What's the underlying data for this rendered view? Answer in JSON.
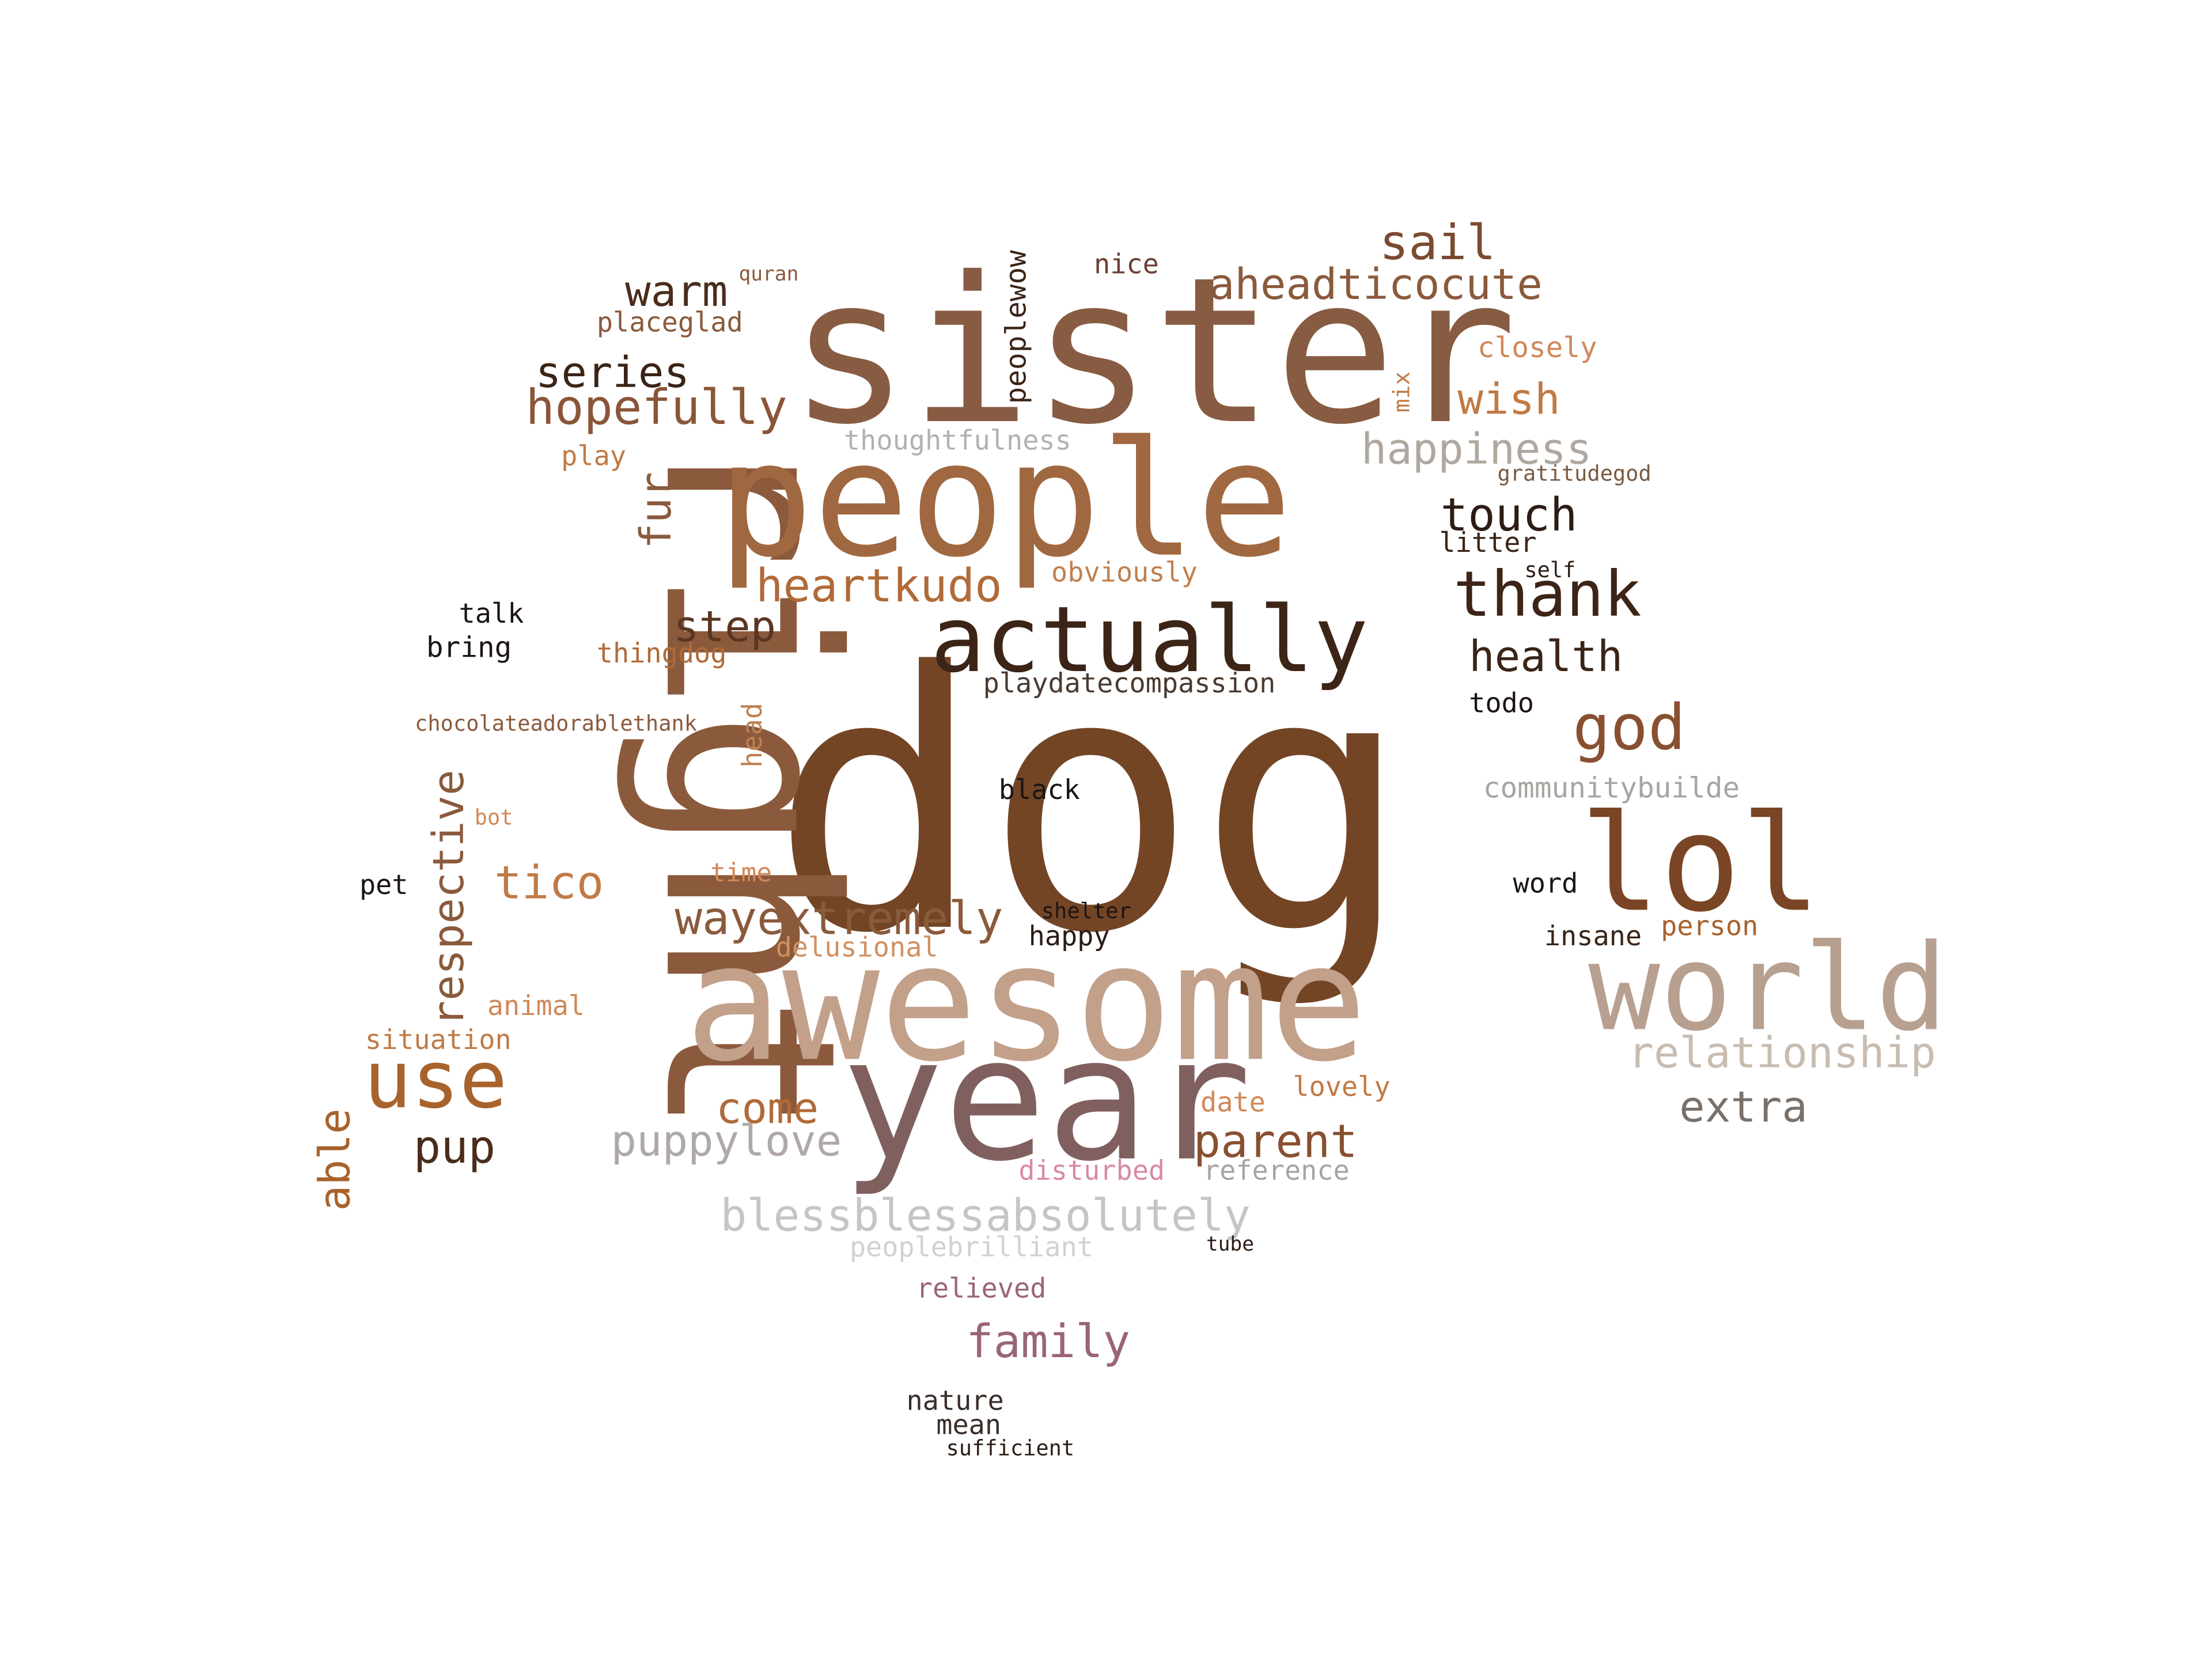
{
  "words": [
    {
      "text": "dog",
      "color": "#734525"
    },
    {
      "text": "sister",
      "color": "#885c42"
    },
    {
      "text": "right",
      "color": "#8b5a3c"
    },
    {
      "text": "people",
      "color": "#a06840"
    },
    {
      "text": "awesome",
      "color": "#c2a08a"
    },
    {
      "text": "year",
      "color": "#80605f"
    },
    {
      "text": "actually",
      "color": "#3c2416"
    },
    {
      "text": "lol",
      "color": "#7a4524"
    },
    {
      "text": "world",
      "color": "#b8a090"
    },
    {
      "text": "use",
      "color": "#a8622c"
    },
    {
      "text": "thank",
      "color": "#3c2416"
    },
    {
      "text": "god",
      "color": "#885030"
    },
    {
      "text": "hopefully",
      "color": "#8a5538"
    },
    {
      "text": "heartkudo",
      "color": "#b06a38"
    },
    {
      "text": "aheadticocute",
      "color": "#8a5a3c"
    },
    {
      "text": "sail",
      "color": "#7a4a30"
    },
    {
      "text": "warm",
      "color": "#4a2c1c"
    },
    {
      "text": "series",
      "color": "#3a2416"
    },
    {
      "text": "wish",
      "color": "#c07a45"
    },
    {
      "text": "happiness",
      "color": "#b0a8a0"
    },
    {
      "text": "touch",
      "color": "#2c1c14"
    },
    {
      "text": "health",
      "color": "#3a2416"
    },
    {
      "text": "step",
      "color": "#5a3622"
    },
    {
      "text": "fur",
      "color": "#8a5a3c"
    },
    {
      "text": "respective",
      "color": "#8a5a3c"
    },
    {
      "text": "tico",
      "color": "#c07a45"
    },
    {
      "text": "wayextremely",
      "color": "#8a5a3c"
    },
    {
      "text": "come",
      "color": "#b06a38"
    },
    {
      "text": "parent",
      "color": "#885030"
    },
    {
      "text": "puppylove",
      "color": "#b0a8a8"
    },
    {
      "text": "pup",
      "color": "#4a2c1c"
    },
    {
      "text": "able",
      "color": "#a8622c"
    },
    {
      "text": "blessblessabsolutely",
      "color": "#c8c4c4"
    },
    {
      "text": "family",
      "color": "#9a6478"
    },
    {
      "text": "extra",
      "color": "#7a706a"
    },
    {
      "text": "relationship",
      "color": "#c8bcb0"
    },
    {
      "text": "thoughtfulness",
      "color": "#b4b0ae"
    },
    {
      "text": "playdatecompassion",
      "color": "#4a3a30"
    },
    {
      "text": "communitybuilde",
      "color": "#a8a4a0"
    },
    {
      "text": "peoplewow",
      "color": "#3a2416"
    },
    {
      "text": "placeglad",
      "color": "#8a5a3c"
    },
    {
      "text": "quran",
      "color": "#8a5a3c"
    },
    {
      "text": "nice",
      "color": "#6a4030"
    },
    {
      "text": "closely",
      "color": "#d08858"
    },
    {
      "text": "mix",
      "color": "#c07a45"
    },
    {
      "text": "gratitudegod",
      "color": "#7a5a40"
    },
    {
      "text": "litter",
      "color": "#3a2416"
    },
    {
      "text": "self",
      "color": "#2c1c14"
    },
    {
      "text": "play",
      "color": "#c07a45"
    },
    {
      "text": "obviously",
      "color": "#c08050"
    },
    {
      "text": "talk",
      "color": "#1c1414"
    },
    {
      "text": "bring",
      "color": "#1c1414"
    },
    {
      "text": "thingdog",
      "color": "#b06a38"
    },
    {
      "text": "todo",
      "color": "#1c1414"
    },
    {
      "text": "chocolateadorablethank",
      "color": "#8a5a3c"
    },
    {
      "text": "head",
      "color": "#c08050"
    },
    {
      "text": "black",
      "color": "#1c1414"
    },
    {
      "text": "bot",
      "color": "#d08858"
    },
    {
      "text": "time",
      "color": "#d08858"
    },
    {
      "text": "pet",
      "color": "#1c1414"
    },
    {
      "text": "word",
      "color": "#1c1414"
    },
    {
      "text": "shelter",
      "color": "#1c1414"
    },
    {
      "text": "happy",
      "color": "#2c1c14"
    },
    {
      "text": "insane",
      "color": "#3a2416"
    },
    {
      "text": "person",
      "color": "#a8622c"
    },
    {
      "text": "delusional",
      "color": "#d09060"
    },
    {
      "text": "animal",
      "color": "#d08858"
    },
    {
      "text": "situation",
      "color": "#c07a45"
    },
    {
      "text": "date",
      "color": "#d08858"
    },
    {
      "text": "lovely",
      "color": "#c07a45"
    },
    {
      "text": "disturbed",
      "color": "#d88aa0"
    },
    {
      "text": "reference",
      "color": "#a8a4a0"
    },
    {
      "text": "peoplebrilliant",
      "color": "#d4d0d0"
    },
    {
      "text": "tube",
      "color": "#2c1c14"
    },
    {
      "text": "relieved",
      "color": "#9a6478"
    },
    {
      "text": "nature",
      "color": "#3a2e2a"
    },
    {
      "text": "mean",
      "color": "#3a2e2a"
    },
    {
      "text": "sufficient",
      "color": "#2c1c14"
    }
  ]
}
